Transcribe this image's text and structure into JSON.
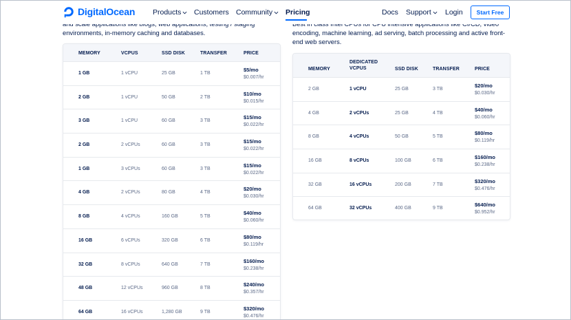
{
  "nav": {
    "brand": "DigitalOcean",
    "products": "Products",
    "customers": "Customers",
    "community": "Community",
    "pricing": "Pricing",
    "docs": "Docs",
    "support": "Support",
    "login": "Login",
    "start_free": "Start Free"
  },
  "intro_left": "and scale applications like blogs, web applications, testing / staging environments, in-memory caching and databases.",
  "intro_right": "Best in class Intel CPUs for CPU intensive applications like CI/CD, video encoding, machine learning, ad serving, batch processing and active front-end web servers.",
  "standard_table": {
    "headers": {
      "memory": "MEMORY",
      "vcpus": "VCPUS",
      "ssd": "SSD DISK",
      "transfer": "TRANSFER",
      "price": "PRICE"
    },
    "rows": [
      {
        "memory": "1 GB",
        "vcpus": "1 vCPU",
        "ssd": "25 GB",
        "transfer": "1 TB",
        "monthly": "$5/mo",
        "hourly": "$0.007/hr"
      },
      {
        "memory": "2 GB",
        "vcpus": "1 vCPU",
        "ssd": "50 GB",
        "transfer": "2 TB",
        "monthly": "$10/mo",
        "hourly": "$0.015/hr"
      },
      {
        "memory": "3 GB",
        "vcpus": "1 vCPU",
        "ssd": "60 GB",
        "transfer": "3 TB",
        "monthly": "$15/mo",
        "hourly": "$0.022/hr"
      },
      {
        "memory": "2 GB",
        "vcpus": "2 vCPUs",
        "ssd": "60 GB",
        "transfer": "3 TB",
        "monthly": "$15/mo",
        "hourly": "$0.022/hr"
      },
      {
        "memory": "1 GB",
        "vcpus": "3 vCPUs",
        "ssd": "60 GB",
        "transfer": "3 TB",
        "monthly": "$15/mo",
        "hourly": "$0.022/hr"
      },
      {
        "memory": "4 GB",
        "vcpus": "2 vCPUs",
        "ssd": "80 GB",
        "transfer": "4 TB",
        "monthly": "$20/mo",
        "hourly": "$0.030/hr"
      },
      {
        "memory": "8 GB",
        "vcpus": "4 vCPUs",
        "ssd": "160 GB",
        "transfer": "5 TB",
        "monthly": "$40/mo",
        "hourly": "$0.060/hr"
      },
      {
        "memory": "16 GB",
        "vcpus": "6 vCPUs",
        "ssd": "320 GB",
        "transfer": "6 TB",
        "monthly": "$80/mo",
        "hourly": "$0.119/hr"
      },
      {
        "memory": "32 GB",
        "vcpus": "8 vCPUs",
        "ssd": "640 GB",
        "transfer": "7 TB",
        "monthly": "$160/mo",
        "hourly": "$0.238/hr"
      },
      {
        "memory": "48 GB",
        "vcpus": "12 vCPUs",
        "ssd": "960 GB",
        "transfer": "8 TB",
        "monthly": "$240/mo",
        "hourly": "$0.357/hr"
      },
      {
        "memory": "64 GB",
        "vcpus": "16 vCPUs",
        "ssd": "1,280 GB",
        "transfer": "9 TB",
        "monthly": "$320/mo",
        "hourly": "$0.476/hr"
      }
    ]
  },
  "cpu_table": {
    "headers": {
      "memory": "MEMORY",
      "vcpus_line1": "DEDICATED",
      "vcpus_line2": "VCPUS",
      "ssd": "SSD DISK",
      "transfer": "TRANSFER",
      "price": "PRICE"
    },
    "rows": [
      {
        "memory": "2 GB",
        "vcpus": "1 vCPU",
        "ssd": "25 GB",
        "transfer": "3 TB",
        "monthly": "$20/mo",
        "hourly": "$0.030/hr"
      },
      {
        "memory": "4 GB",
        "vcpus": "2 vCPUs",
        "ssd": "25 GB",
        "transfer": "4 TB",
        "monthly": "$40/mo",
        "hourly": "$0.060/hr"
      },
      {
        "memory": "8 GB",
        "vcpus": "4 vCPUs",
        "ssd": "50 GB",
        "transfer": "5 TB",
        "monthly": "$80/mo",
        "hourly": "$0.119/hr"
      },
      {
        "memory": "16 GB",
        "vcpus": "8 vCPUs",
        "ssd": "100 GB",
        "transfer": "6 TB",
        "monthly": "$160/mo",
        "hourly": "$0.238/hr"
      },
      {
        "memory": "32 GB",
        "vcpus": "16 vCPUs",
        "ssd": "200 GB",
        "transfer": "7 TB",
        "monthly": "$320/mo",
        "hourly": "$0.476/hr"
      },
      {
        "memory": "64 GB",
        "vcpus": "32 vCPUs",
        "ssd": "400 GB",
        "transfer": "9 TB",
        "monthly": "$640/mo",
        "hourly": "$0.952/hr"
      }
    ]
  },
  "colors": {
    "brand": "#0069ff",
    "text": "#031b4e",
    "muted": "#5b6987",
    "header_bg": "#f4f6fa"
  },
  "icons": {
    "logo": "digitalocean-logo-icon",
    "dropdown": "chevron-down-icon"
  }
}
